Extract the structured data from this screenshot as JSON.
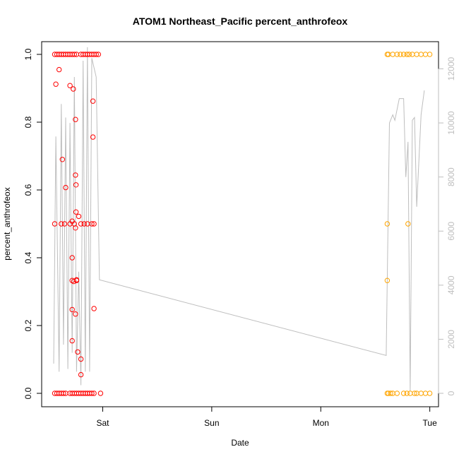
{
  "chart_data": {
    "type": "scatter",
    "title": "ATOM1 Northeast_Pacific percent_anthrofeox",
    "xlabel": "Date",
    "ylabel": "percent_anthrofeox",
    "x_ticks": [
      {
        "label": "Sat",
        "day": 1.0
      },
      {
        "label": "Sun",
        "day": 2.0
      },
      {
        "label": "Mon",
        "day": 3.0
      },
      {
        "label": "Tue",
        "day": 4.0
      }
    ],
    "xlim_days": [
      0.44,
      4.08
    ],
    "ylim": [
      0,
      1
    ],
    "y_ticks": [
      "0.0",
      "0.2",
      "0.4",
      "0.6",
      "0.8",
      "1.0"
    ],
    "y2lim": [
      0,
      12800
    ],
    "y2_ticks": [
      "0",
      "2000",
      "4000",
      "6000",
      "8000",
      "10000",
      "12000"
    ],
    "grid": false,
    "series": [
      {
        "color": "#ff0000",
        "marker": "open-circle",
        "points": [
          [
            0.56,
            1
          ],
          [
            0.58,
            1
          ],
          [
            0.6,
            1
          ],
          [
            0.62,
            1
          ],
          [
            0.64,
            1
          ],
          [
            0.66,
            1
          ],
          [
            0.68,
            1
          ],
          [
            0.7,
            1
          ],
          [
            0.72,
            1
          ],
          [
            0.74,
            1
          ],
          [
            0.76,
            1
          ],
          [
            0.8,
            1
          ],
          [
            0.82,
            1
          ],
          [
            0.84,
            1
          ],
          [
            0.86,
            1
          ],
          [
            0.88,
            1
          ],
          [
            0.9,
            1
          ],
          [
            0.92,
            1
          ],
          [
            0.94,
            1
          ],
          [
            0.96,
            1
          ],
          [
            0.56,
            0
          ],
          [
            0.58,
            0
          ],
          [
            0.6,
            0
          ],
          [
            0.62,
            0
          ],
          [
            0.64,
            0
          ],
          [
            0.66,
            0
          ],
          [
            0.7,
            0
          ],
          [
            0.72,
            0
          ],
          [
            0.74,
            0
          ],
          [
            0.76,
            0
          ],
          [
            0.78,
            0
          ],
          [
            0.8,
            0
          ],
          [
            0.82,
            0
          ],
          [
            0.84,
            0
          ],
          [
            0.86,
            0
          ],
          [
            0.88,
            0
          ],
          [
            0.9,
            0
          ],
          [
            0.92,
            0
          ],
          [
            0.98,
            0
          ],
          [
            0.56,
            0.5
          ],
          [
            0.62,
            0.5
          ],
          [
            0.65,
            0.5
          ],
          [
            0.7,
            0.5
          ],
          [
            0.74,
            0.5
          ],
          [
            0.8,
            0.5
          ],
          [
            0.83,
            0.5
          ],
          [
            0.86,
            0.5
          ],
          [
            0.9,
            0.5
          ],
          [
            0.92,
            0.5
          ],
          [
            0.57,
            0.912
          ],
          [
            0.6,
            0.955
          ],
          [
            0.63,
            0.69
          ],
          [
            0.66,
            0.607
          ],
          [
            0.7,
            0.908
          ],
          [
            0.73,
            0.898
          ],
          [
            0.75,
            0.808
          ],
          [
            0.78,
            0.522
          ],
          [
            0.72,
            0.508
          ],
          [
            0.72,
            0.4
          ],
          [
            0.72,
            0.333
          ],
          [
            0.735,
            0.33
          ],
          [
            0.76,
            0.333
          ],
          [
            0.76,
            0.335
          ],
          [
            0.75,
            0.488
          ],
          [
            0.755,
            0.535
          ],
          [
            0.75,
            0.644
          ],
          [
            0.755,
            0.615
          ],
          [
            0.72,
            0.247
          ],
          [
            0.75,
            0.234
          ],
          [
            0.72,
            0.155
          ],
          [
            0.77,
            0.122
          ],
          [
            0.8,
            0.101
          ],
          [
            0.8,
            0.055
          ],
          [
            0.91,
            0.862
          ],
          [
            0.91,
            0.756
          ],
          [
            0.92,
            0.25
          ]
        ]
      },
      {
        "color": "#ffa500",
        "marker": "open-circle",
        "points": [
          [
            3.61,
            1
          ],
          [
            3.62,
            1
          ],
          [
            3.66,
            1
          ],
          [
            3.7,
            1
          ],
          [
            3.73,
            1
          ],
          [
            3.76,
            1
          ],
          [
            3.79,
            1
          ],
          [
            3.81,
            1
          ],
          [
            3.84,
            1
          ],
          [
            3.88,
            1
          ],
          [
            3.92,
            1
          ],
          [
            3.96,
            1
          ],
          [
            4.0,
            1
          ],
          [
            3.61,
            0
          ],
          [
            3.62,
            0
          ],
          [
            3.64,
            0
          ],
          [
            3.66,
            0
          ],
          [
            3.7,
            0
          ],
          [
            3.76,
            0
          ],
          [
            3.79,
            0
          ],
          [
            3.82,
            0
          ],
          [
            3.86,
            0
          ],
          [
            3.88,
            0
          ],
          [
            3.92,
            0
          ],
          [
            3.96,
            0
          ],
          [
            4.0,
            0
          ],
          [
            3.61,
            0.5
          ],
          [
            3.8,
            0.5
          ],
          [
            3.61,
            0.333
          ]
        ]
      },
      {
        "color": "#bebebe",
        "marker": "line",
        "axis": "right",
        "points": [
          [
            0.55,
            1100
          ],
          [
            0.57,
            9500
          ],
          [
            0.6,
            800
          ],
          [
            0.62,
            10700
          ],
          [
            0.64,
            1800
          ],
          [
            0.66,
            10200
          ],
          [
            0.68,
            900
          ],
          [
            0.7,
            10000
          ],
          [
            0.72,
            1500
          ],
          [
            0.74,
            11700
          ],
          [
            0.76,
            800
          ],
          [
            0.78,
            4500
          ],
          [
            0.8,
            300
          ],
          [
            0.82,
            12300
          ],
          [
            0.84,
            800
          ],
          [
            0.86,
            12800
          ],
          [
            0.88,
            800
          ],
          [
            0.9,
            12400
          ],
          [
            0.94,
            11700
          ],
          [
            0.97,
            4200
          ],
          [
            3.6,
            1400
          ],
          [
            3.63,
            10000
          ],
          [
            3.66,
            10300
          ],
          [
            3.68,
            10100
          ],
          [
            3.72,
            10900
          ],
          [
            3.76,
            10900
          ],
          [
            3.78,
            8000
          ],
          [
            3.8,
            9300
          ],
          [
            3.82,
            100
          ],
          [
            3.84,
            10100
          ],
          [
            3.86,
            10200
          ],
          [
            3.88,
            6900
          ],
          [
            3.92,
            10300
          ],
          [
            3.95,
            11200
          ]
        ]
      }
    ]
  }
}
